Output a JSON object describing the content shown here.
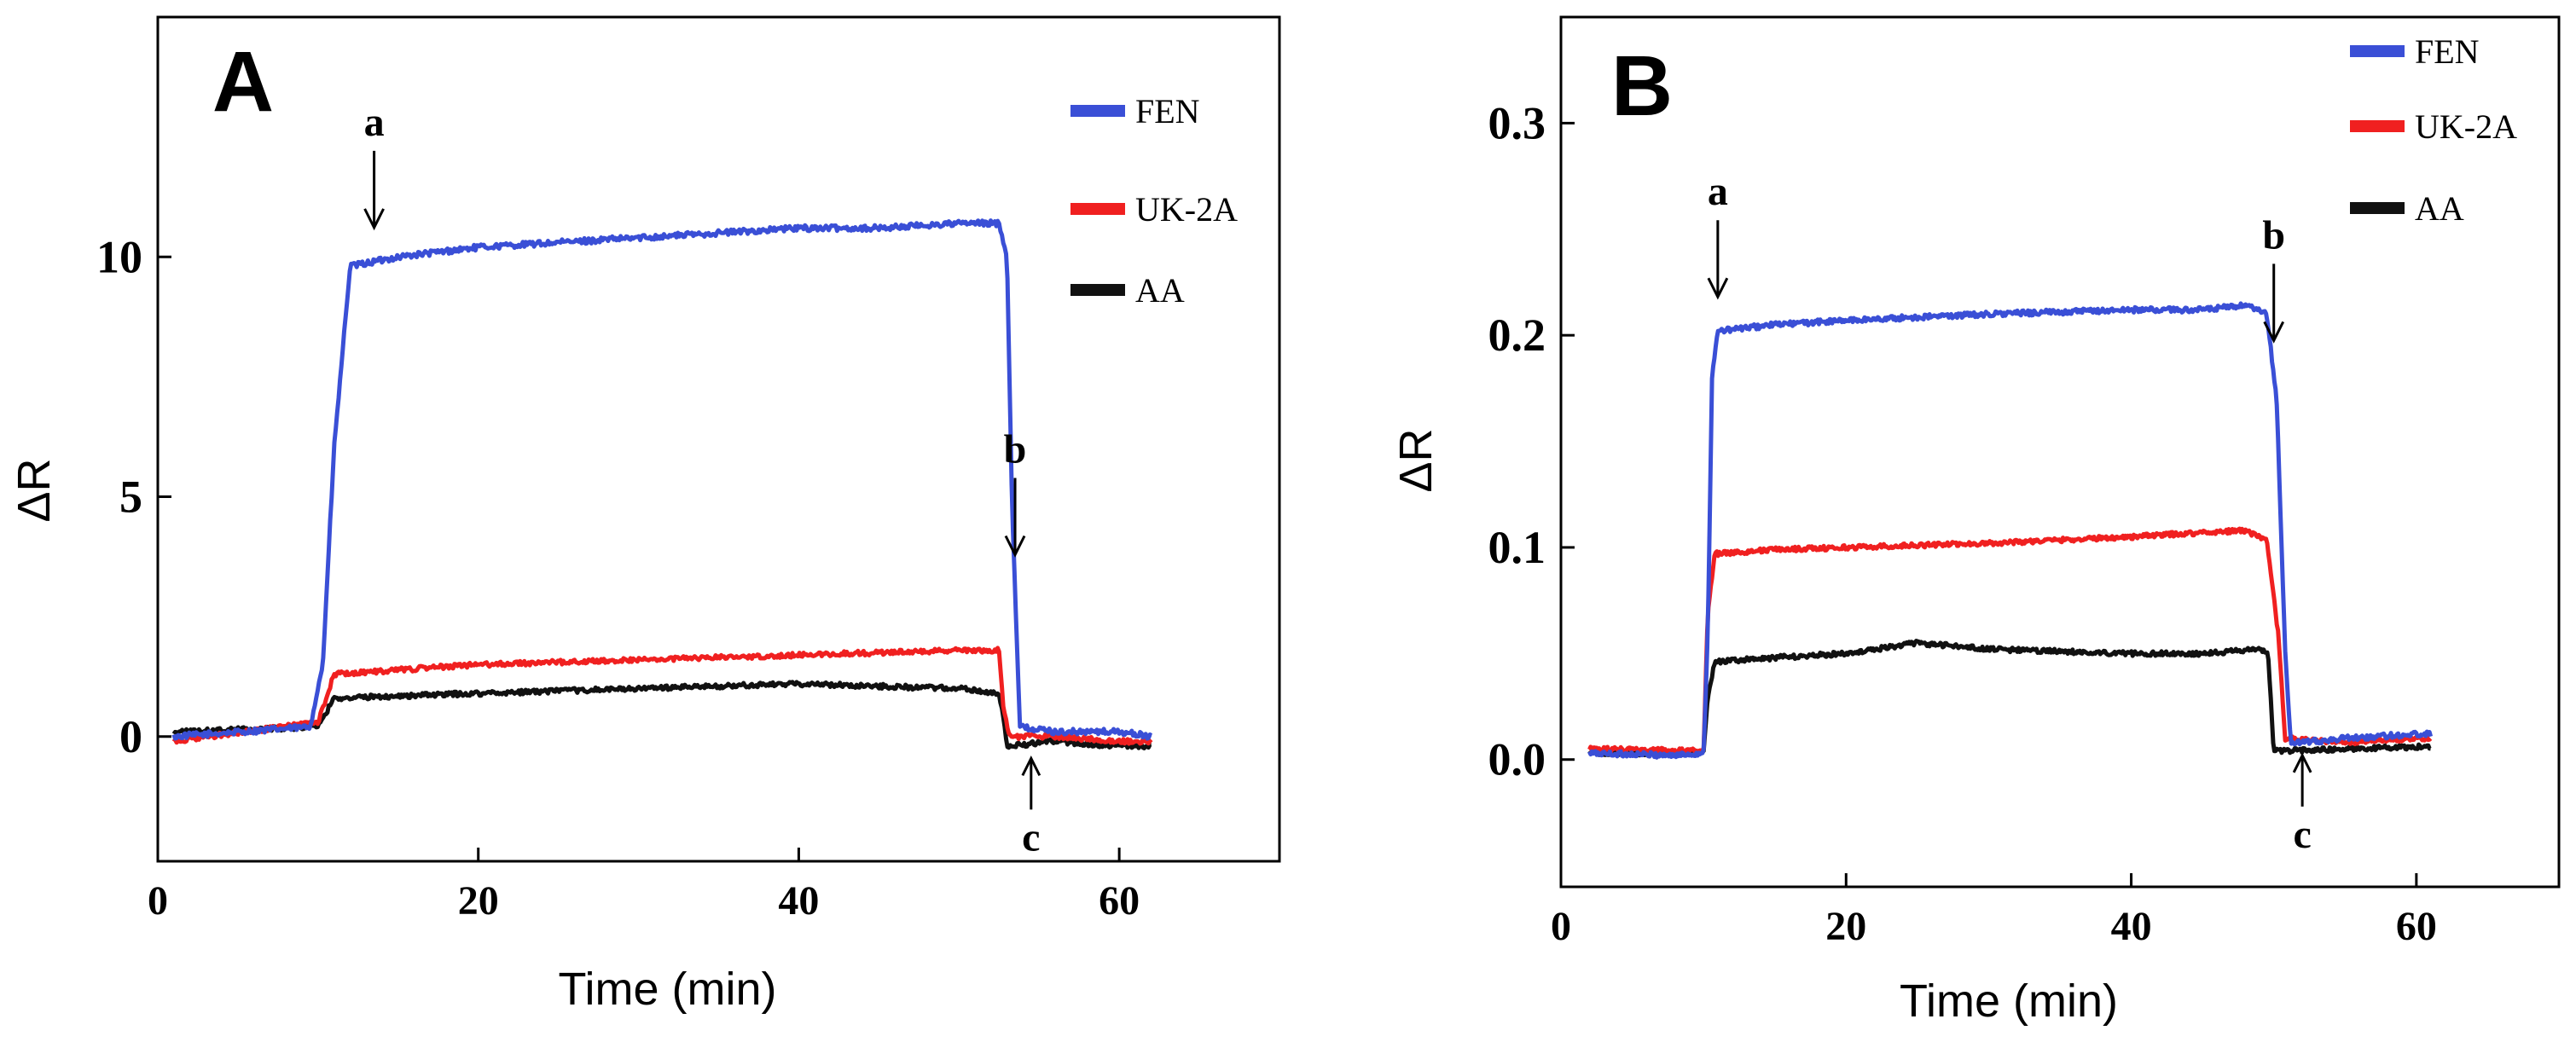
{
  "colors": {
    "FEN": "#3a4fd6",
    "UK-2A": "#f02020",
    "AA": "#111111"
  },
  "chart_data": [
    {
      "type": "line",
      "panel_label": "A",
      "xlabel": "Time (min)",
      "ylabel": "ΔR",
      "xlim": [
        0,
        70
      ],
      "ylim": [
        -2.6,
        15
      ],
      "xticks": [
        0,
        20,
        40,
        60
      ],
      "yticks": [
        0,
        5,
        10
      ],
      "legend": [
        {
          "name": "FEN",
          "label": "FEN"
        },
        {
          "name": "UK-2A",
          "label": "UK-2A"
        },
        {
          "name": "AA",
          "label": "AA"
        }
      ],
      "annotations": [
        {
          "label": "a",
          "x": 13.5,
          "direction": "down"
        },
        {
          "label": "b",
          "x": 53.5,
          "direction": "down"
        },
        {
          "label": "c",
          "x": 54.5,
          "direction": "up"
        }
      ],
      "series": [
        {
          "name": "FEN",
          "x": [
            1,
            9.5,
            10.3,
            11,
            12,
            15,
            20,
            30,
            40,
            45,
            50,
            52.5,
            53,
            53.3,
            53.8,
            56,
            60,
            62
          ],
          "y": [
            0,
            0.2,
            1.5,
            6,
            9.8,
            10.0,
            10.2,
            10.4,
            10.6,
            10.6,
            10.7,
            10.7,
            10.0,
            5.0,
            0.2,
            0.1,
            0.1,
            0.0
          ]
        },
        {
          "name": "UK-2A",
          "x": [
            1,
            10,
            10.5,
            11,
            20,
            30,
            40,
            50,
            52.5,
            52.8,
            53.2,
            56,
            60,
            62
          ],
          "y": [
            -0.1,
            0.3,
            0.8,
            1.3,
            1.5,
            1.6,
            1.7,
            1.8,
            1.8,
            0.5,
            0.0,
            0.0,
            -0.1,
            -0.1
          ]
        },
        {
          "name": "AA",
          "x": [
            1,
            10,
            10.5,
            11,
            20,
            30,
            40,
            50,
            52.5,
            52.8,
            53,
            56,
            60,
            62
          ],
          "y": [
            0.1,
            0.2,
            0.5,
            0.8,
            0.9,
            1.0,
            1.1,
            1.0,
            0.9,
            0.3,
            -0.2,
            -0.1,
            -0.2,
            -0.2
          ]
        }
      ]
    },
    {
      "type": "line",
      "panel_label": "B",
      "xlabel": "Time (min)",
      "ylabel": "ΔR",
      "xlim": [
        0,
        70
      ],
      "ylim": [
        -0.06,
        0.35
      ],
      "xticks": [
        0,
        20,
        40,
        60
      ],
      "yticks": [
        0.0,
        0.1,
        0.2,
        0.3
      ],
      "ytick_labels": [
        "0.0",
        "0.1",
        "0.2",
        "0.3"
      ],
      "legend": [
        {
          "name": "FEN",
          "label": "FEN"
        },
        {
          "name": "UK-2A",
          "label": "UK-2A"
        },
        {
          "name": "AA",
          "label": "AA"
        }
      ],
      "annotations": [
        {
          "label": "a",
          "x": 11,
          "direction": "down"
        },
        {
          "label": "b",
          "x": 50,
          "direction": "down"
        },
        {
          "label": "c",
          "x": 52,
          "direction": "up"
        }
      ],
      "series": [
        {
          "name": "FEN",
          "x": [
            2,
            8,
            10,
            10.3,
            10.6,
            11,
            15,
            20,
            30,
            40,
            45,
            48,
            49.5,
            50.2,
            50.8,
            51.2,
            52,
            55,
            60,
            61
          ],
          "y": [
            0.003,
            0.002,
            0.003,
            0.06,
            0.18,
            0.202,
            0.205,
            0.207,
            0.21,
            0.212,
            0.212,
            0.214,
            0.21,
            0.17,
            0.05,
            0.008,
            0.008,
            0.01,
            0.012,
            0.012
          ]
        },
        {
          "name": "UK-2A",
          "x": [
            2,
            10,
            10.3,
            10.8,
            15,
            20,
            30,
            40,
            45,
            48,
            49.5,
            50.3,
            50.8,
            55,
            60,
            61
          ],
          "y": [
            0.005,
            0.004,
            0.07,
            0.097,
            0.099,
            0.1,
            0.102,
            0.105,
            0.107,
            0.108,
            0.103,
            0.06,
            0.01,
            0.008,
            0.01,
            0.01
          ]
        },
        {
          "name": "AA",
          "x": [
            2,
            10,
            10.3,
            10.8,
            15,
            20,
            25,
            30,
            40,
            45,
            49,
            49.6,
            50,
            55,
            60,
            61
          ],
          "y": [
            0.003,
            0.003,
            0.03,
            0.046,
            0.048,
            0.05,
            0.055,
            0.052,
            0.05,
            0.05,
            0.052,
            0.05,
            0.004,
            0.005,
            0.006,
            0.006
          ]
        }
      ]
    }
  ]
}
